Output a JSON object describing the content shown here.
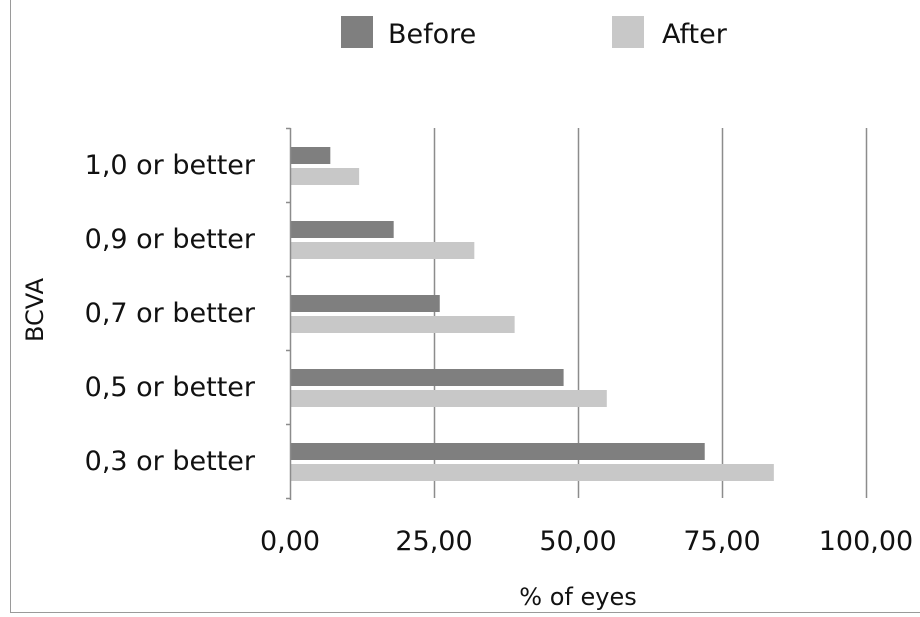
{
  "chart_data": {
    "type": "bar",
    "orientation": "horizontal",
    "categories": [
      "1,0 or better",
      "0,9 or better",
      "0,7 or better",
      "0,5 or better",
      "0,3 or better"
    ],
    "series": [
      {
        "name": "Before",
        "color": "#7f7f7f",
        "values": [
          7,
          18,
          26,
          47.5,
          72
        ]
      },
      {
        "name": "After",
        "color": "#c8c8c8",
        "values": [
          12,
          32,
          39,
          55,
          84
        ]
      }
    ],
    "xlabel": "% of eyes",
    "ylabel": "BCVA",
    "xlim": [
      0,
      100
    ],
    "xticks": [
      0,
      25,
      50,
      75,
      100
    ],
    "xtick_labels": [
      "0,00",
      "25,00",
      "50,00",
      "75,00",
      "100,00"
    ],
    "grid": true,
    "legend_position": "top"
  }
}
